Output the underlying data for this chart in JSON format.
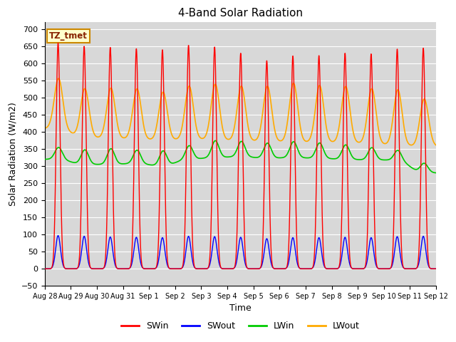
{
  "title": "4-Band Solar Radiation",
  "xlabel": "Time",
  "ylabel": "Solar Radiation (W/m2)",
  "ylim": [
    -50,
    720
  ],
  "legend_labels": [
    "SWin",
    "SWout",
    "LWin",
    "LWout"
  ],
  "legend_colors": [
    "#ff0000",
    "#0000ff",
    "#00cc00",
    "#ffaa00"
  ],
  "annotation_text": "TZ_tmet",
  "annotation_bg": "#ffffcc",
  "annotation_border": "#cc8800",
  "fig_bg": "#ffffff",
  "plot_bg": "#d8d8d8",
  "grid_color": "#ffffff",
  "n_days": 15,
  "tick_labels": [
    "Aug 28",
    "Aug 29",
    "Aug 30",
    "Aug 31",
    "Sep 1",
    "Sep 2",
    "Sep 3",
    "Sep 4",
    "Sep 5",
    "Sep 6",
    "Sep 7",
    "Sep 8",
    "Sep 9",
    "Sep 10",
    "Sep 11",
    "Sep 12"
  ],
  "swin_peaks": [
    660,
    650,
    647,
    643,
    640,
    653,
    648,
    630,
    608,
    622,
    623,
    630,
    628,
    642,
    645
  ],
  "swout_peaks": [
    97,
    95,
    93,
    92,
    91,
    95,
    94,
    92,
    88,
    91,
    91,
    92,
    91,
    94,
    95
  ],
  "lwin_night": [
    320,
    305,
    305,
    308,
    300,
    320,
    325,
    328,
    323,
    325,
    323,
    320,
    318,
    318,
    280
  ],
  "lwin_day": [
    358,
    352,
    356,
    352,
    348,
    365,
    380,
    378,
    372,
    377,
    373,
    367,
    358,
    352,
    308
  ],
  "lwout_night": [
    410,
    385,
    382,
    380,
    376,
    380,
    378,
    375,
    373,
    371,
    370,
    370,
    366,
    362,
    358
  ],
  "lwout_day": [
    568,
    542,
    545,
    543,
    532,
    552,
    558,
    552,
    552,
    562,
    555,
    552,
    545,
    542,
    502
  ]
}
